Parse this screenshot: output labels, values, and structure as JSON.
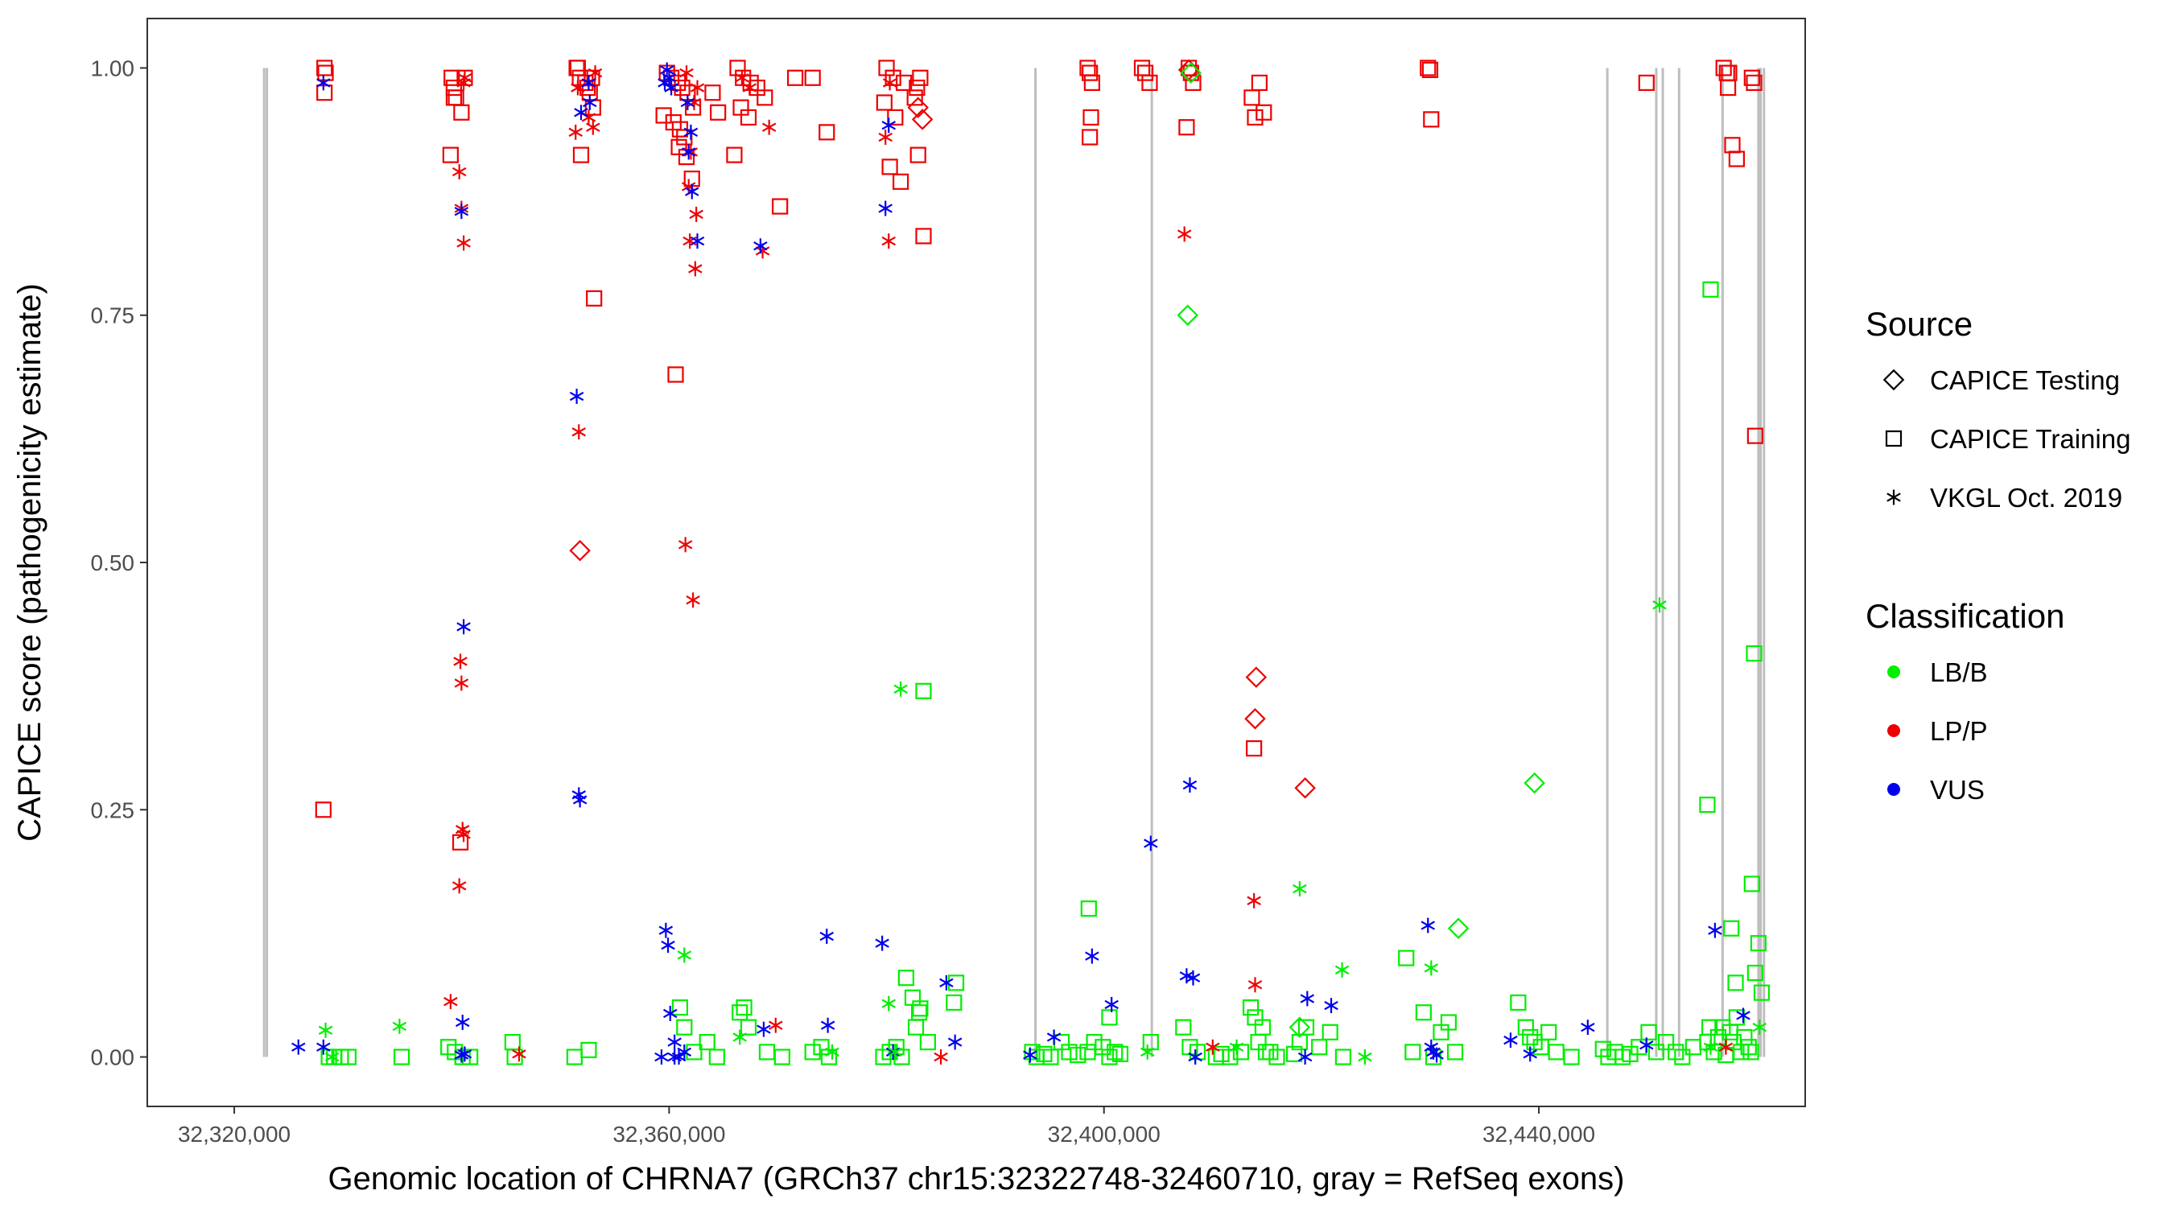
{
  "chart_data": {
    "type": "scatter",
    "title": "",
    "xlabel": "Genomic location of CHRNA7 (GRCh37 chr15:32322748-32460710, gray = RefSeq exons)",
    "ylabel": "CAPICE score (pathogenicity estimate)",
    "xlim": [
      32312000,
      32464500
    ],
    "ylim": [
      -0.05,
      1.05
    ],
    "x_ticks": [
      32320000,
      32360000,
      32400000,
      32440000
    ],
    "x_tick_labels": [
      "32,320,000",
      "32,360,000",
      "32,400,000",
      "32,440,000"
    ],
    "y_ticks": [
      0,
      0.25,
      0.5,
      0.75,
      1
    ],
    "y_tick_labels": [
      "0.00",
      "0.25",
      "0.50",
      "0.75",
      "1.00"
    ],
    "grid": false,
    "exon_lines_color": "#bebebe",
    "exons": [
      32322748,
      32323000,
      32393700,
      32404400,
      32446300,
      32450800,
      32451400,
      32452900,
      32456900,
      32460200,
      32460400,
      32460710
    ],
    "legend": {
      "source_title": "Source",
      "source_entries": [
        {
          "shape": "diamond",
          "label": "CAPICE Testing"
        },
        {
          "shape": "square",
          "label": "CAPICE Training"
        },
        {
          "shape": "asterisk",
          "label": "VKGL Oct. 2019"
        }
      ],
      "class_title": "Classification",
      "class_entries": [
        {
          "key": "LB/B",
          "label": "LB/B",
          "color": "#00ee00"
        },
        {
          "key": "LP/P",
          "label": "LP/P",
          "color": "#ee0000"
        },
        {
          "key": "VUS",
          "label": "VUS",
          "color": "#0000ee"
        }
      ]
    },
    "series": [
      {
        "name": "CAPICE Training LP/P",
        "shape": "square",
        "class": "LP/P",
        "x": [
          32328300,
          32328400,
          32328300,
          32340000,
          32340200,
          32340400,
          32340900,
          32341200,
          32339900,
          32340200,
          32328200,
          32340800,
          32351600,
          32351800,
          32352300,
          32352700,
          32353000,
          32351900,
          32352500,
          32352900,
          32353100,
          32351500,
          32359800,
          32360200,
          32360800,
          32361200,
          32361700,
          32362200,
          32359500,
          32360400,
          32361000,
          32361400,
          32360900,
          32361600,
          32362100,
          32360600,
          32366300,
          32366800,
          32367500,
          32368100,
          32368800,
          32366600,
          32367300,
          32364000,
          32364500,
          32366000,
          32370200,
          32371600,
          32373200,
          32374500,
          32380000,
          32380600,
          32381600,
          32382800,
          32383100,
          32379800,
          32380800,
          32382600,
          32380300,
          32381300,
          32382900,
          32383400,
          32398500,
          32398700,
          32398900,
          32398800,
          32398700,
          32403500,
          32403800,
          32404200,
          32407800,
          32408000,
          32408200,
          32407600,
          32413600,
          32413900,
          32414300,
          32414700,
          32413800,
          32429800,
          32430000,
          32430100,
          32449900,
          32457000,
          32457300,
          32457400,
          32457800,
          32458200,
          32459600,
          32459800,
          32459900,
          32457500
        ],
        "y": [
          1.0,
          0.995,
          0.975,
          0.99,
          0.98,
          0.97,
          0.955,
          0.99,
          0.912,
          0.97,
          0.25,
          0.217,
          1.0,
          0.99,
          0.985,
          0.975,
          0.96,
          0.912,
          0.98,
          0.99,
          0.767,
          1.0,
          0.995,
          0.99,
          0.985,
          0.98,
          0.975,
          0.96,
          0.952,
          0.945,
          0.938,
          0.93,
          0.92,
          0.91,
          0.888,
          0.69,
          1.0,
          0.99,
          0.985,
          0.98,
          0.97,
          0.96,
          0.95,
          0.975,
          0.955,
          0.912,
          0.86,
          0.99,
          0.99,
          0.935,
          1.0,
          0.99,
          0.985,
          0.98,
          0.99,
          0.965,
          0.95,
          0.97,
          0.9,
          0.885,
          0.912,
          0.83,
          1.0,
          0.995,
          0.985,
          0.95,
          0.93,
          1.0,
          0.995,
          0.985,
          1.0,
          0.995,
          0.985,
          0.94,
          0.97,
          0.95,
          0.985,
          0.955,
          0.312,
          1.0,
          0.998,
          0.948,
          0.985,
          1.0,
          0.995,
          0.98,
          0.922,
          0.908,
          0.99,
          0.985,
          0.628,
          0.995
        ],
        "color": "#ee0000"
      },
      {
        "name": "CAPICE Training LB/B",
        "shape": "square",
        "class": "LB/B",
        "x": [
          32328700,
          32329200,
          32329800,
          32330500,
          32335400,
          32339700,
          32340300,
          32341000,
          32341700,
          32345600,
          32345800,
          32351300,
          32352600,
          32361000,
          32361400,
          32362300,
          32363500,
          32364400,
          32366500,
          32366900,
          32367300,
          32369000,
          32370400,
          32373200,
          32374000,
          32374700,
          32379700,
          32380300,
          32380900,
          32381400,
          32382700,
          32383000,
          32383800,
          32386200,
          32386400,
          32393400,
          32393800,
          32394500,
          32395100,
          32396100,
          32396800,
          32397600,
          32398500,
          32399100,
          32399900,
          32400500,
          32401000,
          32401500,
          32404300,
          32407300,
          32407900,
          32408600,
          32410300,
          32410800,
          32411600,
          32412600,
          32413500,
          32413900,
          32414200,
          32414600,
          32414900,
          32415300,
          32415900,
          32417500,
          32418000,
          32418600,
          32419800,
          32420800,
          32422000,
          32427800,
          32428400,
          32429400,
          32430300,
          32431000,
          32431700,
          32432300,
          32438100,
          32438800,
          32439200,
          32439600,
          32440200,
          32440900,
          32441600,
          32443000,
          32445900,
          32446400,
          32447000,
          32447700,
          32448400,
          32449200,
          32450100,
          32450800,
          32451700,
          32452600,
          32453200,
          32454200,
          32455500,
          32455700,
          32456100,
          32456500,
          32456900,
          32457200,
          32457600,
          32457900,
          32458200,
          32458600,
          32458900,
          32459300,
          32459500,
          32459900,
          32460200,
          32460500,
          32381800,
          32382400,
          32383100,
          32383400,
          32398600,
          32400500,
          32455500,
          32455800,
          32457700,
          32458100,
          32459800,
          32459600
        ],
        "y": [
          0,
          0,
          0,
          0,
          0,
          0.01,
          0.005,
          0,
          0,
          0.015,
          0,
          0,
          0.007,
          0.05,
          0.03,
          0.005,
          0.015,
          0,
          0.045,
          0.05,
          0.03,
          0.005,
          0,
          0.005,
          0.01,
          0,
          0,
          0.005,
          0.01,
          0,
          0.03,
          0.045,
          0.015,
          0.055,
          0.075,
          0.005,
          0,
          0.003,
          0,
          0.015,
          0.005,
          0.002,
          0.005,
          0.015,
          0.01,
          0,
          0.005,
          0.003,
          0.015,
          0.03,
          0.01,
          0.005,
          0,
          0.003,
          0,
          0.005,
          0.05,
          0.04,
          0.015,
          0.03,
          0.005,
          0.005,
          0,
          0.003,
          0.015,
          0.03,
          0.01,
          0.025,
          0,
          0.1,
          0.005,
          0.045,
          0,
          0.025,
          0.035,
          0.005,
          0.055,
          0.03,
          0.02,
          0.015,
          0.01,
          0.025,
          0.005,
          0,
          0.008,
          0,
          0.005,
          0,
          0.003,
          0.01,
          0.025,
          0.005,
          0.015,
          0.005,
          0,
          0.01,
          0.015,
          0.03,
          0.005,
          0.02,
          0.03,
          0.002,
          0.025,
          0.015,
          0.04,
          0.005,
          0.02,
          0.01,
          0.005,
          0.085,
          0.115,
          0.065,
          0.08,
          0.06,
          0.049,
          0.37,
          0.15,
          0.04,
          0.255,
          0.776,
          0.13,
          0.075,
          0.408,
          0.175
        ],
        "color": "#00ee00"
      },
      {
        "name": "VKGL LP/P",
        "shape": "asterisk",
        "class": "LP/P",
        "x": [
          32340700,
          32340900,
          32341100,
          32340800,
          32340900,
          32341000,
          32341100,
          32340700,
          32339900,
          32341200,
          32341100,
          32351400,
          32351700,
          32352600,
          32353000,
          32353200,
          32351600,
          32361600,
          32362300,
          32362000,
          32361800,
          32362500,
          32361900,
          32362400,
          32361500,
          32362200,
          32362600,
          32366700,
          32367400,
          32368600,
          32369200,
          32379900,
          32380200,
          32380300,
          32407400,
          32413800,
          32413900,
          32410000,
          32369800,
          32385000,
          32346200,
          32457200
        ],
        "y": [
          0.895,
          0.858,
          0.823,
          0.4,
          0.378,
          0.23,
          0.225,
          0.173,
          0.056,
          0.99,
          0.985,
          0.935,
          0.632,
          0.95,
          0.94,
          0.995,
          0.98,
          0.995,
          0.965,
          0.915,
          0.88,
          0.852,
          0.825,
          0.797,
          0.518,
          0.462,
          0.98,
          0.99,
          0.98,
          0.815,
          0.94,
          0.93,
          0.825,
          0.985,
          0.832,
          0.158,
          0.073,
          0.01,
          0.032,
          0.0,
          0.003,
          0.01
        ],
        "color": "#ee0000"
      },
      {
        "name": "VKGL VUS",
        "shape": "asterisk",
        "class": "VUS",
        "x": [
          32328200,
          32340900,
          32341100,
          32341000,
          32341200,
          32351500,
          32351700,
          32351800,
          32352600,
          32359700,
          32359900,
          32360100,
          32360500,
          32360900,
          32361400,
          32361700,
          32362000,
          32361800,
          32362100,
          32359800,
          32360000,
          32360200,
          32359600,
          32368400,
          32368700,
          32374500,
          32374600,
          32379600,
          32379900,
          32380200,
          32385500,
          32386300,
          32393200,
          32395400,
          32398900,
          32400700,
          32404300,
          32407600,
          32407900,
          32418700,
          32420900,
          32429800,
          32430100,
          32430300,
          32430600,
          32437400,
          32439200,
          32444500,
          32449900,
          32456200,
          32458800,
          32325900,
          32328200,
          32340900,
          32351900,
          32352700,
          32380600,
          32359300,
          32360500,
          32362600,
          32408400,
          32418500,
          32408200
        ],
        "y": [
          0.985,
          0.855,
          0.435,
          0.035,
          0.003,
          0.668,
          0.265,
          0.26,
          0.985,
          0.128,
          0.113,
          0.044,
          0.015,
          0.0,
          0.005,
          0.965,
          0.935,
          0.915,
          0.875,
          0.998,
          0.99,
          0.98,
          0.985,
          0.82,
          0.028,
          0.122,
          0.032,
          0.115,
          0.858,
          0.942,
          0.075,
          0.015,
          0.002,
          0.02,
          0.102,
          0.053,
          0.216,
          0.082,
          0.275,
          0.059,
          0.052,
          0.133,
          0.01,
          0.005,
          0.002,
          0.017,
          0.003,
          0.03,
          0.012,
          0.128,
          0.042,
          0.01,
          0.01,
          0.002,
          0.955,
          0.965,
          0.005,
          0.0,
          0.0,
          0.825,
          0.0,
          0.0,
          0.08
        ],
        "color": "#0000ee"
      },
      {
        "name": "VKGL LB/B",
        "shape": "asterisk",
        "class": "LB/B",
        "x": [
          32328400,
          32335200,
          32361400,
          32380200,
          32381300,
          32451100,
          32418000,
          32421900,
          32430100,
          32366500,
          32375000,
          32380800,
          32412200,
          32455800,
          32460300,
          32329000,
          32404000,
          32424000
        ],
        "y": [
          0.027,
          0.031,
          0.103,
          0.054,
          0.372,
          0.457,
          0.17,
          0.088,
          0.09,
          0.02,
          0.005,
          0.005,
          0.01,
          0.01,
          0.03,
          0.0,
          0.005,
          0.0
        ],
        "color": "#00ee00"
      },
      {
        "name": "CAPICE Testing",
        "shape": "diamond",
        "class": "mixed",
        "x": [
          32351800,
          32383300,
          32382900,
          32407800,
          32414000,
          32413900,
          32418500,
          32407700,
          32418000,
          32408000,
          32432600,
          32439600
        ],
        "y": [
          0.512,
          0.948,
          0.96,
          0.998,
          0.384,
          0.342,
          0.272,
          0.75,
          0.03,
          0.995,
          0.13,
          0.277
        ],
        "colors": [
          "#ee0000",
          "#ee0000",
          "#ee0000",
          "#ee0000",
          "#ee0000",
          "#ee0000",
          "#ee0000",
          "#00ee00",
          "#00ee00",
          "#00ee00",
          "#00ee00",
          "#00ee00"
        ]
      }
    ]
  }
}
